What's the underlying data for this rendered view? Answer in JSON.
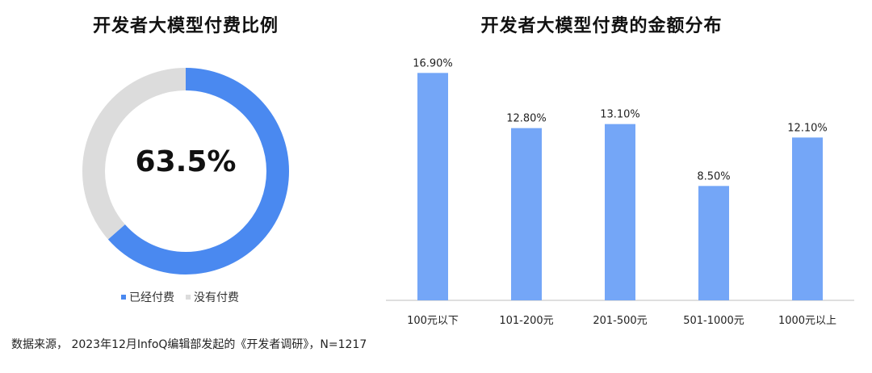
{
  "colors": {
    "paid": "#4a89f0",
    "unpaid": "#dcdcdc",
    "bar": "#74a6f7",
    "axis": "#bfbfbf"
  },
  "donut": {
    "title": "开发者大模型付费比例",
    "center_label": "63.5%",
    "legend": [
      {
        "label": "已经付费"
      },
      {
        "label": "没有付费"
      }
    ]
  },
  "bars": {
    "title": "开发者大模型付费的金额分布"
  },
  "footer": {
    "source": "数据来源， 2023年12月InfoQ编辑部发起的《开发者调研》，N=1217"
  },
  "chart_data": [
    {
      "type": "pie",
      "title": "开发者大模型付费比例",
      "categories": [
        "已经付费",
        "没有付费"
      ],
      "values": [
        63.5,
        36.5
      ],
      "center_label": "63.5%",
      "legend_position": "bottom"
    },
    {
      "type": "bar",
      "title": "开发者大模型付费的金额分布",
      "categories": [
        "100元以下",
        "101-200元",
        "201-500元",
        "501-1000元",
        "1000元以上"
      ],
      "values": [
        16.9,
        12.8,
        13.1,
        8.5,
        12.1
      ],
      "data_labels": [
        "16.90%",
        "12.80%",
        "13.10%",
        "8.50%",
        "12.10%"
      ],
      "ylim": [
        0,
        18
      ],
      "grid": false
    }
  ]
}
